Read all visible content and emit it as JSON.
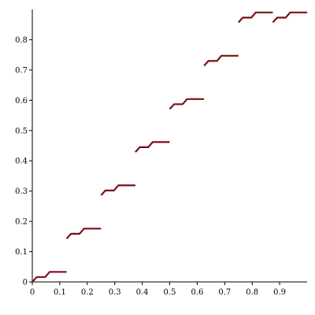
{
  "chart_data": {
    "type": "line",
    "title": "",
    "xlabel": "",
    "ylabel": "",
    "xlim": [
      0,
      1
    ],
    "ylim": [
      0,
      0.9
    ],
    "grid": false,
    "legend": "none",
    "x_ticks": [
      0,
      0.1,
      0.2,
      0.3,
      0.4,
      0.5,
      0.6,
      0.7,
      0.8,
      0.9
    ],
    "x_tick_labels": [
      "0",
      "0.1",
      "0.2",
      "0.3",
      "0.4",
      "0.5",
      "0.6",
      "0.7",
      "0.8",
      "0.9"
    ],
    "y_ticks": [
      0,
      0.1,
      0.2,
      0.3,
      0.4,
      0.5,
      0.6,
      0.7,
      0.8
    ],
    "y_tick_labels": [
      "0",
      "0.1",
      "0.2",
      "0.3",
      "0.4",
      "0.5",
      "0.6",
      "0.7",
      "0.8"
    ],
    "color": "#7a0f17",
    "series": [
      {
        "segments": [
          [
            [
              0,
              0
            ],
            [
              0.016,
              0.016
            ],
            [
              0.047,
              0.016
            ],
            [
              0.063,
              0.033
            ],
            [
              0.125,
              0.033
            ]
          ],
          [
            [
              0.125,
              0.143
            ],
            [
              0.141,
              0.159
            ],
            [
              0.172,
              0.159
            ],
            [
              0.188,
              0.176
            ],
            [
              0.25,
              0.176
            ]
          ],
          [
            [
              0.25,
              0.286
            ],
            [
              0.266,
              0.302
            ],
            [
              0.297,
              0.302
            ],
            [
              0.313,
              0.319
            ],
            [
              0.375,
              0.319
            ]
          ],
          [
            [
              0.375,
              0.429
            ],
            [
              0.391,
              0.445
            ],
            [
              0.422,
              0.445
            ],
            [
              0.438,
              0.462
            ],
            [
              0.5,
              0.462
            ]
          ],
          [
            [
              0.5,
              0.571
            ],
            [
              0.516,
              0.587
            ],
            [
              0.547,
              0.587
            ],
            [
              0.563,
              0.604
            ],
            [
              0.625,
              0.604
            ]
          ],
          [
            [
              0.625,
              0.714
            ],
            [
              0.641,
              0.73
            ],
            [
              0.672,
              0.73
            ],
            [
              0.688,
              0.747
            ],
            [
              0.75,
              0.747
            ]
          ],
          [
            [
              0.75,
              0.857
            ],
            [
              0.766,
              0.873
            ],
            [
              0.797,
              0.873
            ],
            [
              0.813,
              0.89
            ],
            [
              0.875,
              0.89
            ]
          ],
          [
            [
              0.875,
              0.857
            ],
            [
              0.891,
              0.873
            ],
            [
              0.922,
              0.873
            ],
            [
              0.938,
              0.89
            ],
            [
              1.0,
              0.89
            ]
          ]
        ]
      }
    ]
  }
}
